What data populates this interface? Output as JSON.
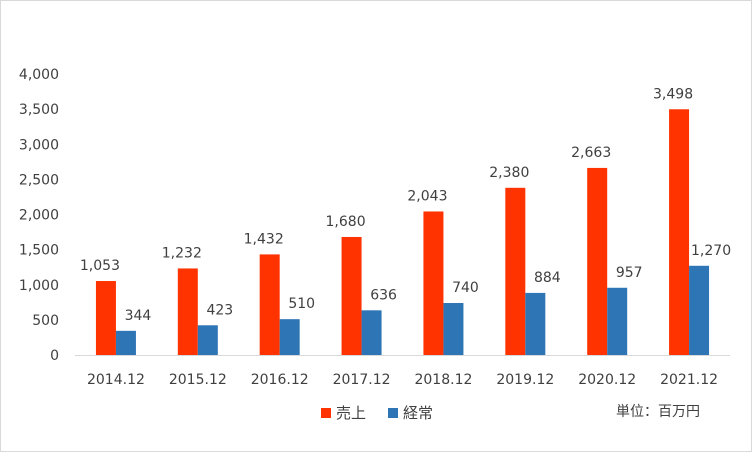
{
  "chart_data": {
    "type": "bar",
    "categories": [
      "2014.12",
      "2015.12",
      "2016.12",
      "2017.12",
      "2018.12",
      "2019.12",
      "2020.12",
      "2021.12"
    ],
    "series": [
      {
        "name": "売上",
        "color": "#ff3300",
        "values": [
          1053,
          1232,
          1432,
          1680,
          2043,
          2380,
          2663,
          3498
        ],
        "labels": [
          "1,053",
          "1,232",
          "1,432",
          "1,680",
          "2,043",
          "2,380",
          "2,663",
          "3,498"
        ]
      },
      {
        "name": "経常",
        "color": "#2e75b6",
        "values": [
          344,
          423,
          510,
          636,
          740,
          884,
          957,
          1270
        ],
        "labels": [
          "344",
          "423",
          "510",
          "636",
          "740",
          "884",
          "957",
          "1,270"
        ]
      }
    ],
    "ylim": [
      0,
      4000
    ],
    "yticks": [
      0,
      500,
      1000,
      1500,
      2000,
      2500,
      3000,
      3500,
      4000
    ],
    "ytick_labels": [
      "0",
      "500",
      "1,000",
      "1,500",
      "2,000",
      "2,500",
      "3,000",
      "3,500",
      "4,000"
    ],
    "grid": false,
    "legend_position": "bottom",
    "unit_note": "単位：百万円"
  }
}
